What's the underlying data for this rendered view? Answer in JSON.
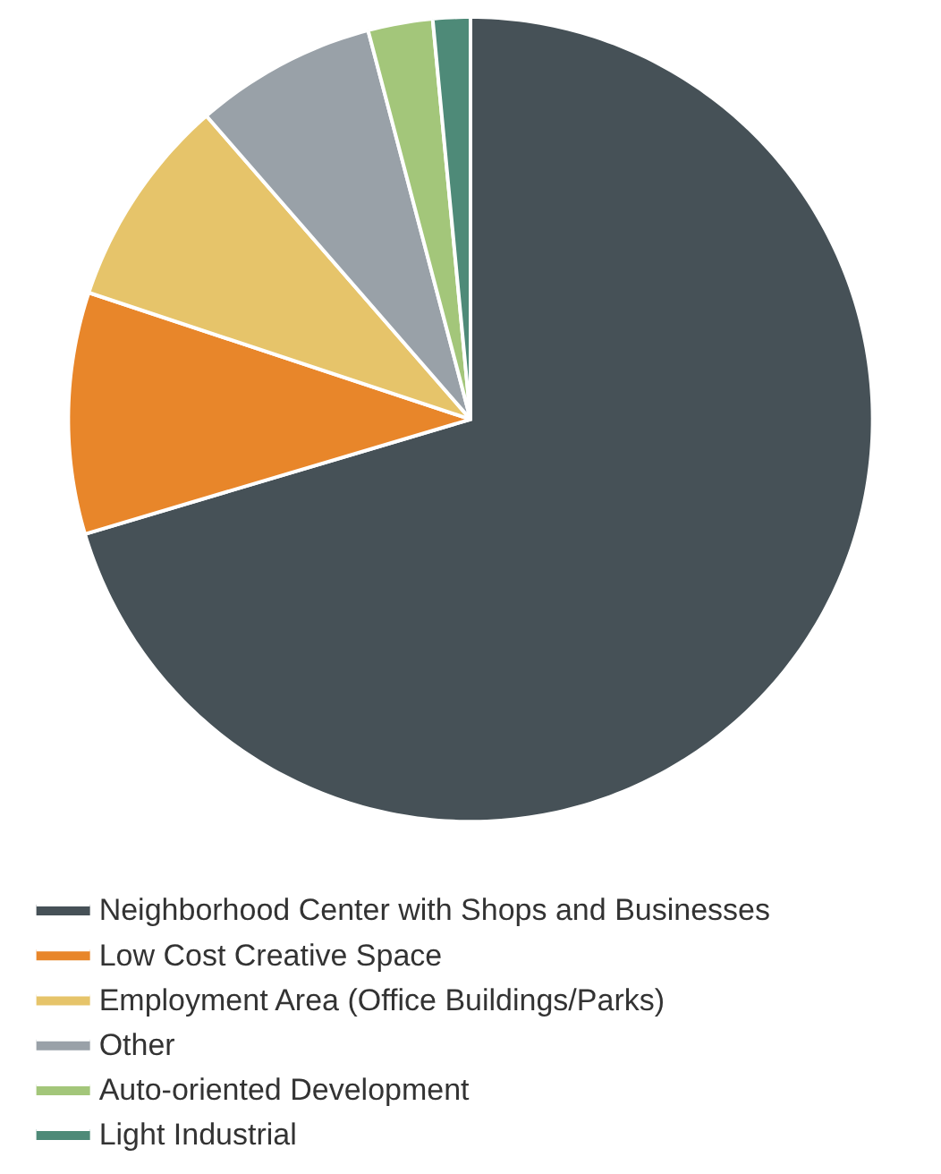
{
  "chart_data": {
    "type": "pie",
    "categories": [
      "Neighborhood Center with Shops and Businesses",
      "Low Cost Creative Space",
      "Employment Area (Office Buildings/Parks)",
      "Other",
      "Auto-oriented Development",
      "Light Industrial"
    ],
    "values": [
      70.4,
      9.7,
      8.5,
      7.3,
      2.6,
      1.5
    ],
    "colors": [
      "#465157",
      "#e8862a",
      "#e6c46a",
      "#99a1a8",
      "#a3c67a",
      "#4e8a78"
    ],
    "legend": "bottom"
  }
}
